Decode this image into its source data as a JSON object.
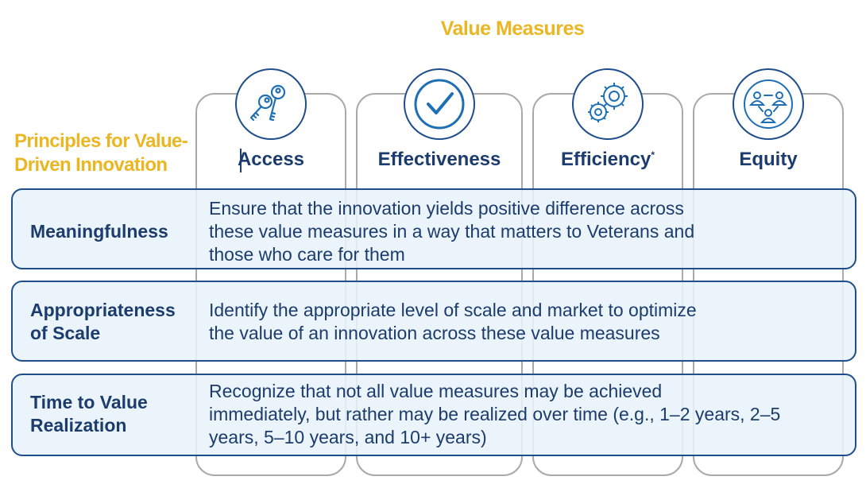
{
  "value_measures_title": "Value Measures",
  "principles_title_line1": "Principles for Value-",
  "principles_title_line2": "Driven Innovation",
  "columns": [
    {
      "label": "Access",
      "icon": "keys-icon"
    },
    {
      "label": "Effectiveness",
      "icon": "checkmark-icon"
    },
    {
      "label": "Efficiency",
      "superscript": "*",
      "icon": "gears-icon"
    },
    {
      "label": "Equity",
      "icon": "people-network-icon"
    }
  ],
  "rows": [
    {
      "label_line1": "Meaningfulness",
      "label_line2": "",
      "text_line1": "Ensure that the innovation yields positive difference across",
      "text_line2": "these value measures in a way that matters to Veterans and",
      "text_line3": "those who care for them"
    },
    {
      "label_line1": "Appropriateness",
      "label_line2": "of Scale",
      "text_line1": "Identify the appropriate level of scale and market to optimize",
      "text_line2": "the value of an innovation across these value measures",
      "text_line3": ""
    },
    {
      "label_line1": "Time to Value",
      "label_line2": "Realization",
      "text_line1": "Recognize that not all value measures may be achieved",
      "text_line2": "immediately, but rather may be realized over time (e.g., 1–2 years, 2–5",
      "text_line3": "years, 5–10 years, and 10+ years)"
    }
  ],
  "colors": {
    "gold": "#eab622",
    "navy": "#1b3c6c",
    "icon_blue": "#1f6fb5",
    "row_fill": "#e8f3fa",
    "column_border": "#a9a9a9"
  }
}
